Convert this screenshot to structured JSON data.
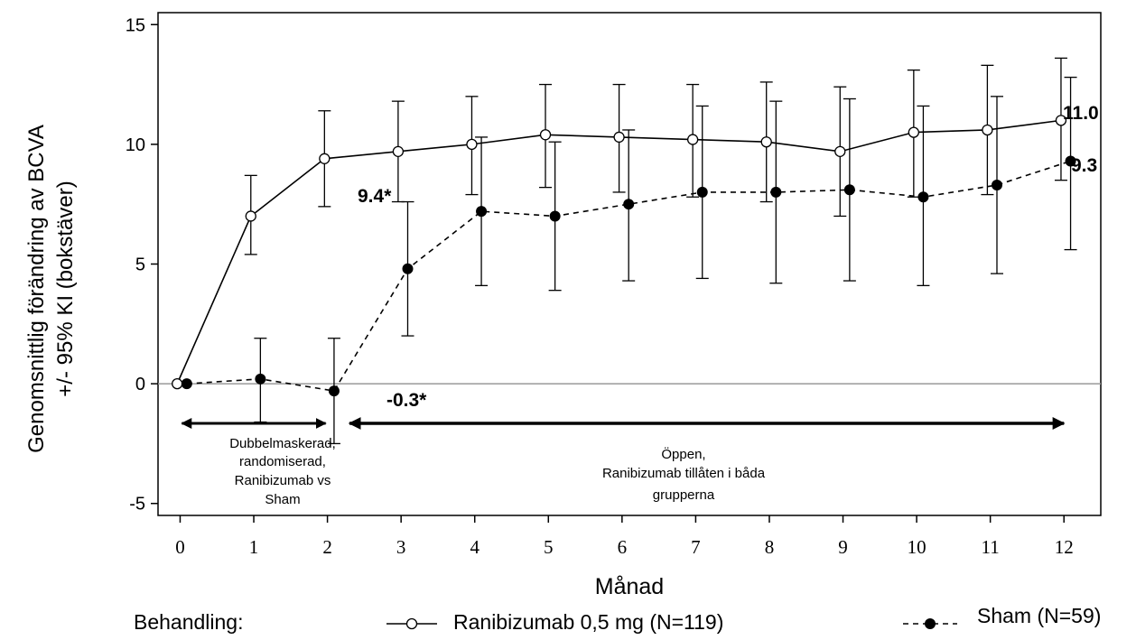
{
  "chart_data": {
    "type": "line",
    "xlabel": "Månad",
    "ylabel": [
      "Genomsnittlig förändring av  BCVA",
      "+/- 95% KI (bokstäver)"
    ],
    "xlim": [
      -0.3,
      12.5
    ],
    "ylim": [
      -5.5,
      15.5
    ],
    "x_ticks": [
      0,
      1,
      2,
      3,
      4,
      5,
      6,
      7,
      8,
      9,
      10,
      11,
      12
    ],
    "x_tick_labels": [
      "0",
      "1",
      "2",
      "3",
      "4",
      "5",
      "6",
      "7",
      "8",
      "9",
      "10",
      "11",
      "12"
    ],
    "y_ticks": [
      15,
      10,
      5,
      0,
      -5
    ],
    "y_tick_labels": [
      "15",
      "10",
      "5",
      "0",
      "-5"
    ],
    "grid": false,
    "reference_line_y": 0,
    "series": [
      {
        "name": "Ranibizumab 0,5 mg (N=119)",
        "marker": "open-circle",
        "line_style": "solid",
        "x": [
          0,
          1,
          2,
          3,
          4,
          5,
          6,
          7,
          8,
          9,
          10,
          11,
          12
        ],
        "y": [
          0,
          7.0,
          9.4,
          9.7,
          10.0,
          10.4,
          10.3,
          10.2,
          10.1,
          9.7,
          10.5,
          10.6,
          11.0
        ],
        "ci_low": [
          0,
          5.4,
          7.4,
          7.6,
          7.9,
          8.2,
          8.0,
          7.8,
          7.6,
          7.0,
          7.8,
          7.9,
          8.5
        ],
        "ci_high": [
          0,
          8.7,
          11.4,
          11.8,
          12.0,
          12.5,
          12.5,
          12.5,
          12.6,
          12.4,
          13.1,
          13.3,
          13.6
        ]
      },
      {
        "name": "Sham (N=59)",
        "marker": "filled-circle",
        "line_style": "dashed",
        "x": [
          0,
          1,
          2,
          3,
          4,
          5,
          6,
          7,
          8,
          9,
          10,
          11,
          12
        ],
        "y": [
          0,
          0.2,
          -0.3,
          4.8,
          7.2,
          7.0,
          7.5,
          8.0,
          8.0,
          8.1,
          7.8,
          8.3,
          9.3
        ],
        "ci_low": [
          0,
          -1.6,
          -2.5,
          2.0,
          4.1,
          3.9,
          4.3,
          4.4,
          4.2,
          4.3,
          4.1,
          4.6,
          5.6
        ],
        "ci_high": [
          0,
          1.9,
          1.9,
          7.6,
          10.3,
          10.1,
          10.6,
          11.6,
          11.8,
          11.9,
          11.6,
          12.0,
          12.8
        ]
      }
    ],
    "annotations": {
      "rani_end": "11.0",
      "sham_end": "9.3",
      "month2_rani": "9.4*",
      "month2_sham": "-0.3*",
      "phase1_text": [
        "Dubbelmaskerad,",
        "randomiserad,",
        "Ranibizumab vs",
        "Sham"
      ],
      "phase2_text": [
        "Öppen,",
        "Ranibizumab tillåten i båda",
        "grupperna"
      ],
      "phase1_range": [
        0,
        2
      ],
      "phase2_range": [
        2.3,
        12
      ]
    },
    "legend": {
      "title": "Behandling:",
      "placement": "bottom",
      "items": [
        {
          "label": "Ranibizumab  0,5 mg  (N=119)",
          "marker": "open-circle",
          "line_style": "solid"
        },
        {
          "label": "Sham (N=59)",
          "marker": "filled-circle",
          "line_style": "dashed"
        }
      ]
    },
    "colors": {
      "series_rani": "#000000",
      "series_sham": "#000000",
      "zero_line": "#9a9a9a",
      "axes": "#000000"
    }
  }
}
